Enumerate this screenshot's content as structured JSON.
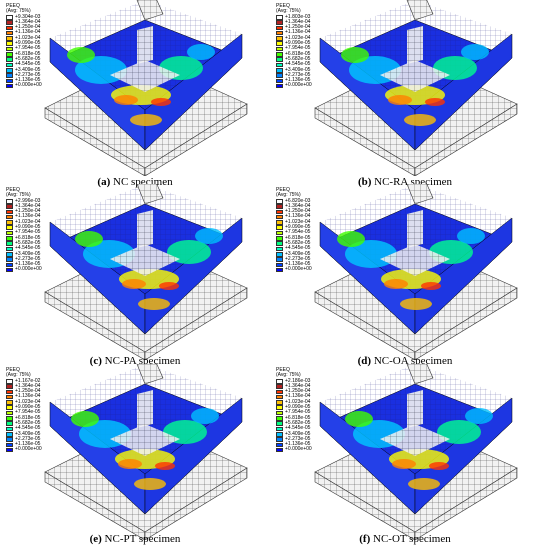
{
  "legend_colors": [
    "#ffffff",
    "#b22222",
    "#ff3300",
    "#ff8000",
    "#ffbf00",
    "#ffff00",
    "#bfff00",
    "#40ff00",
    "#00ff80",
    "#00ffbf",
    "#00bfff",
    "#0080ff",
    "#0040ff",
    "#0000ff"
  ],
  "panels": [
    {
      "letter": "(a)",
      "name": "NC specimen",
      "legend_title": "PEEQ",
      "legend_sub": "(Avg: 75%)",
      "values": [
        "+9.304e-03",
        "+1.364e-04",
        "+1.250e-04",
        "+1.136e-04",
        "+1.023e-04",
        "+9.090e-05",
        "+7.954e-05",
        "+6.818e-05",
        "+5.682e-05",
        "+4.545e-05",
        "+3.409e-05",
        "+2.273e-05",
        "+1.136e-05",
        "+0.000e+00"
      ]
    },
    {
      "letter": "(b)",
      "name": "NC-RA specimen",
      "legend_title": "PEEQ",
      "legend_sub": "(Avg: 75%)",
      "values": [
        "+1.803e-03",
        "+1.364e-04",
        "+1.250e-04",
        "+1.136e-04",
        "+1.023e-04",
        "+9.090e-05",
        "+7.954e-05",
        "+6.818e-05",
        "+5.682e-05",
        "+4.545e-05",
        "+3.409e-05",
        "+2.273e-05",
        "+1.136e-05",
        "+0.000e+00"
      ]
    },
    {
      "letter": "(c)",
      "name": "NC-PA specimen",
      "legend_title": "PEEQ",
      "legend_sub": "(Avg: 75%)",
      "values": [
        "+2.996e-03",
        "+1.364e-04",
        "+1.250e-04",
        "+1.136e-04",
        "+1.023e-04",
        "+9.090e-05",
        "+7.954e-05",
        "+6.818e-05",
        "+5.682e-05",
        "+4.545e-05",
        "+3.409e-05",
        "+2.273e-05",
        "+1.136e-05",
        "+0.000e+00"
      ]
    },
    {
      "letter": "(d)",
      "name": "NC-OA specimen",
      "legend_title": "PEEQ",
      "legend_sub": "(Avg: 75%)",
      "values": [
        "+6.820e-03",
        "+1.364e-04",
        "+1.250e-04",
        "+1.136e-04",
        "+1.023e-04",
        "+9.090e-05",
        "+7.954e-05",
        "+6.818e-05",
        "+5.682e-05",
        "+4.545e-05",
        "+3.409e-05",
        "+2.273e-05",
        "+1.136e-05",
        "+0.000e+00"
      ]
    },
    {
      "letter": "(e)",
      "name": "NC-PT specimen",
      "legend_title": "PEEQ",
      "legend_sub": "(Avg: 75%)",
      "values": [
        "+1.167e-02",
        "+1.364e-04",
        "+1.250e-04",
        "+1.136e-04",
        "+1.023e-04",
        "+9.090e-05",
        "+7.954e-05",
        "+6.818e-05",
        "+5.682e-05",
        "+4.545e-05",
        "+3.409e-05",
        "+2.273e-05",
        "+1.136e-05",
        "+0.000e+00"
      ]
    },
    {
      "letter": "(f)",
      "name": "NC-OT specimen",
      "legend_title": "PEEQ",
      "legend_sub": "(Avg: 75%)",
      "values": [
        "+2.186e-03",
        "+1.364e-04",
        "+1.250e-04",
        "+1.136e-04",
        "+1.023e-04",
        "+9.090e-05",
        "+7.954e-05",
        "+6.818e-05",
        "+5.682e-05",
        "+4.545e-05",
        "+3.409e-05",
        "+2.273e-05",
        "+1.136e-05",
        "+0.000e+00"
      ]
    }
  ]
}
